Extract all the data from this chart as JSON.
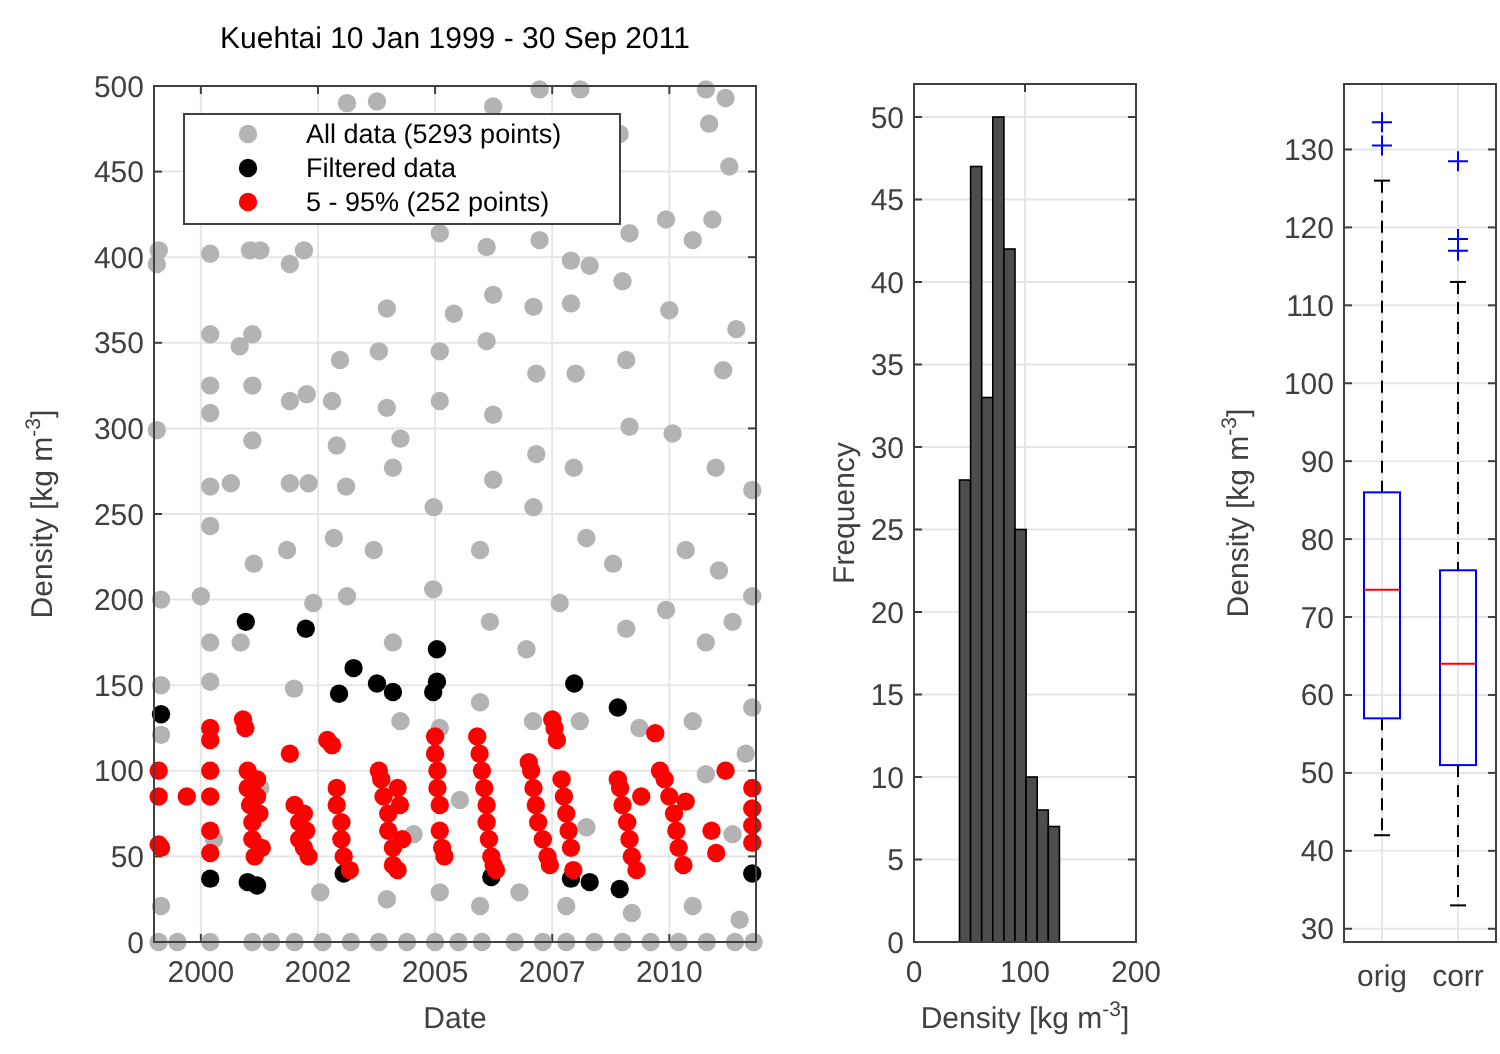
{
  "chart_data": [
    {
      "type": "scatter",
      "title": "Kuehtai 10 Jan 1999 - 30 Sep 2011",
      "xlabel": "Date",
      "ylabel": "Density [kg m$^{-3}$]",
      "xlim": [
        1999.0,
        2011.85
      ],
      "xticks": [
        {
          "value": 2000,
          "label": "2000"
        },
        {
          "value": 2002.5,
          "label": "2002"
        },
        {
          "value": 2005,
          "label": "2005"
        },
        {
          "value": 2007.5,
          "label": "2007"
        },
        {
          "value": 2010,
          "label": "2010"
        }
      ],
      "ylim": [
        0,
        500
      ],
      "yticks": [
        0,
        50,
        100,
        150,
        200,
        250,
        300,
        350,
        400,
        450,
        500
      ],
      "grid": true,
      "legend": "top left",
      "marker": "circle",
      "series": [
        {
          "name": "All data (5293 points)",
          "color": "#b3b3b3",
          "x": [
            1999.06,
            1999.1,
            1999.06,
            2000.2,
            2000.2,
            2000.2,
            2000.2,
            2000.2,
            2000.2,
            2000.83,
            2001.05,
            2001.27,
            2001.1,
            2001.1,
            2001.1,
            2000.64,
            2001.9,
            2002.2,
            2001.9,
            2002.26,
            2001.9,
            2002.3,
            2003.12,
            2003.76,
            2002.97,
            2002.8,
            2002.9,
            2003.1,
            2003.97,
            2003.97,
            2003.8,
            2004.26,
            2004.1,
            2005.1,
            2005.1,
            2005.1,
            2004.97,
            2005.4,
            2006.24,
            2006.1,
            2006.1,
            2006.24,
            2006.24,
            2006.24,
            2007.23,
            2008.1,
            2007.23,
            2007.1,
            2007.16,
            2007.16,
            2007.1,
            2007.9,
            2007.9,
            2008.0,
            2007.96,
            2008.3,
            2008.94,
            2009.0,
            2009.15,
            2009.08,
            2009.15,
            2009.93,
            2010.0,
            2010.07,
            2010.78,
            2011.2,
            2010.85,
            2011.28,
            2010.92,
            2010.5,
            2011.43,
            2011.15,
            2011.77,
            2010.99,
            1999.15,
            1999.15,
            1999.15,
            1999.15,
            2000.0,
            2000.2,
            2000.2,
            2000.85,
            2001.13,
            2001.27,
            2001.84,
            2001.99,
            2002.4,
            2002.55,
            2002.84,
            2003.12,
            2003.69,
            2004.1,
            2003.97,
            2004.26,
            2004.96,
            2005.1,
            2005.1,
            2005.53,
            2005.96,
            2006.17,
            2005.96,
            2005.96,
            2006.95,
            2007.09,
            2006.8,
            2007.66,
            2008.23,
            2008.09,
            2007.8,
            2008.8,
            2009.08,
            2009.36,
            2009.2,
            2009.93,
            2010.35,
            2010.5,
            2010.78,
            2010.5,
            2011.06,
            2011.35,
            2011.63,
            2011.77,
            2011.77,
            2011.5,
            2000.28,
            2004.54,
            2008.23,
            2011.35,
            2010.78,
            1999.1,
            1999.5,
            2000.2,
            2001.1,
            2001.5,
            2002.0,
            2002.6,
            2003.2,
            2003.8,
            2004.4,
            2005.0,
            2005.5,
            2006.0,
            2006.7,
            2007.3,
            2007.8,
            2008.4,
            2009.0,
            2009.6,
            2010.2,
            2010.8,
            2011.4,
            2011.8
          ],
          "values": [
            396,
            404,
            299,
            402,
            355,
            325,
            309,
            266,
            243,
            348,
            404,
            404,
            355,
            325,
            293,
            268,
            396,
            404,
            316,
            320,
            268,
            268,
            490,
            491,
            340,
            316,
            290,
            266,
            370,
            312,
            345,
            294,
            277,
            414,
            345,
            316,
            254,
            367,
            488,
            406,
            351,
            378,
            308,
            270,
            498,
            498,
            410,
            371,
            332,
            285,
            254,
            398,
            373,
            332,
            277,
            395,
            472,
            386,
            414,
            340,
            301,
            422,
            369,
            297,
            498,
            493,
            478,
            453,
            422,
            410,
            358,
            334,
            264,
            277,
            200,
            150,
            121,
            21,
            202,
            152,
            175,
            175,
            221,
            90,
            229,
            148,
            198,
            29,
            236,
            202,
            229,
            175,
            25,
            129,
            206,
            125,
            29,
            83,
            229,
            187,
            140,
            21,
            171,
            129,
            29,
            198,
            236,
            129,
            21,
            221,
            183,
            125,
            17,
            194,
            229,
            129,
            175,
            21,
            217,
            187,
            110,
            202,
            137,
            13,
            60,
            63,
            67,
            63,
            98,
            0,
            0,
            0,
            0,
            0,
            0,
            0,
            0,
            0,
            0,
            0,
            0,
            0,
            0,
            0,
            0,
            0,
            0,
            0,
            0,
            0,
            0,
            0
          ]
        },
        {
          "name": "Filtered data",
          "color": "#000000",
          "x": [
            1999.15,
            2000.2,
            2000.96,
            2001.0,
            2001.2,
            2002.24,
            2002.95,
            2003.05,
            2003.26,
            2003.76,
            2004.1,
            2005.04,
            2005.04,
            2004.96,
            2006.2,
            2007.9,
            2007.97,
            2008.3,
            2008.9,
            2008.94,
            2011.77
          ],
          "values": [
            133,
            37,
            187,
            35,
            33,
            183,
            145,
            40,
            160,
            151,
            146,
            171,
            152,
            146,
            38,
            37,
            151,
            35,
            137,
            31,
            40
          ]
        },
        {
          "name": "5 - 95% (252 points)",
          "color": "#ff0000",
          "x": [
            1999.1,
            1999.1,
            1999.1,
            1999.15,
            1999.7,
            2000.2,
            2000.2,
            2000.2,
            2000.2,
            2000.2,
            2000.2,
            2000.9,
            2000.95,
            2001.0,
            2001.0,
            2001.05,
            2001.1,
            2001.1,
            2001.15,
            2001.2,
            2001.2,
            2001.25,
            2001.3,
            2001.9,
            2002.0,
            2002.1,
            2002.1,
            2002.2,
            2002.3,
            2002.2,
            2002.25,
            2002.7,
            2002.8,
            2002.9,
            2002.9,
            2003.0,
            2003.0,
            2003.05,
            2003.18,
            2003.8,
            2003.85,
            2003.9,
            2004.0,
            2004.0,
            2004.1,
            2004.1,
            2004.2,
            2004.2,
            2004.25,
            2004.3,
            2005.0,
            2005.0,
            2005.05,
            2005.05,
            2005.1,
            2005.1,
            2005.15,
            2005.2,
            2005.9,
            2005.95,
            2006.0,
            2006.05,
            2006.1,
            2006.1,
            2006.15,
            2006.2,
            2006.25,
            2006.3,
            2007.0,
            2007.05,
            2007.1,
            2007.15,
            2007.2,
            2007.3,
            2007.4,
            2007.45,
            2007.5,
            2007.55,
            2007.6,
            2007.7,
            2007.75,
            2007.8,
            2007.85,
            2007.9,
            2007.95,
            2008.9,
            2008.95,
            2009.0,
            2009.1,
            2009.15,
            2009.2,
            2009.3,
            2009.4,
            2009.7,
            2009.8,
            2009.9,
            2010.0,
            2010.1,
            2010.15,
            2010.2,
            2010.3,
            2010.35,
            2010.9,
            2011.0,
            2011.2,
            2011.77,
            2011.77,
            2011.77,
            2011.77
          ],
          "values": [
            100,
            85,
            57,
            55,
            85,
            125,
            118,
            100,
            85,
            65,
            52,
            130,
            125,
            100,
            90,
            80,
            70,
            60,
            50,
            95,
            85,
            75,
            55,
            110,
            80,
            70,
            60,
            55,
            50,
            75,
            65,
            118,
            115,
            90,
            80,
            70,
            60,
            50,
            42,
            100,
            95,
            85,
            75,
            65,
            55,
            45,
            42,
            90,
            80,
            60,
            120,
            110,
            100,
            90,
            80,
            65,
            55,
            50,
            120,
            110,
            100,
            90,
            80,
            70,
            60,
            50,
            45,
            42,
            105,
            100,
            90,
            80,
            70,
            60,
            50,
            45,
            130,
            125,
            118,
            95,
            85,
            75,
            65,
            55,
            42,
            95,
            90,
            80,
            70,
            60,
            50,
            42,
            85,
            122,
            100,
            95,
            85,
            75,
            65,
            55,
            45,
            82,
            65,
            52,
            100,
            90,
            78,
            68,
            58
          ]
        }
      ]
    },
    {
      "type": "histogram",
      "xlabel": "Density [kg m$^{-3}$]",
      "ylabel": "Frequency",
      "bins": [
        41,
        51,
        61,
        71,
        81,
        91,
        101,
        111,
        121,
        131
      ],
      "values": [
        28,
        47,
        33,
        50,
        42,
        25,
        10,
        8,
        7
      ],
      "color": "#4d4d4d",
      "xlim": [
        0,
        200
      ],
      "xticks": [
        0,
        100,
        200
      ],
      "ylim": [
        0,
        52
      ],
      "yticks": [
        0,
        5,
        10,
        15,
        20,
        25,
        30,
        35,
        40,
        45,
        50
      ],
      "grid": true
    },
    {
      "type": "box",
      "ylabel": "Density [kg m$^{-3}$]",
      "categories": [
        "orig",
        "corr"
      ],
      "ylim": [
        28.3,
        138.4
      ],
      "yticks": [
        30,
        40,
        50,
        60,
        70,
        80,
        90,
        100,
        110,
        120,
        130
      ],
      "grid": true,
      "series": [
        {
          "color": "#0000ff",
          "boxes": [
            {
              "low": 42,
              "q1": 57,
              "median": 73.5,
              "q3": 86,
              "high": 126,
              "outliers": [
                130.5,
                133.5
              ]
            },
            {
              "low": 33,
              "q1": 51,
              "median": 64,
              "q3": 76,
              "high": 113,
              "outliers": [
                117,
                118.5,
                128.5
              ]
            }
          ]
        }
      ]
    }
  ]
}
